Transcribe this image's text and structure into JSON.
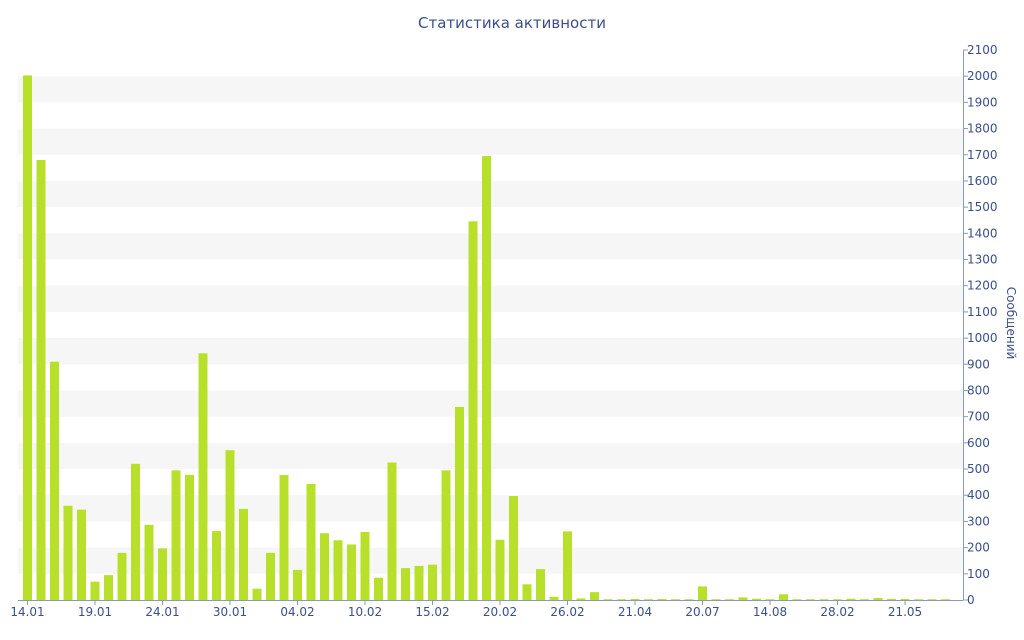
{
  "chart_data": {
    "type": "bar",
    "title": "Статистика активности",
    "xlabel": "",
    "ylabel": "Сообщений",
    "ylim": [
      0,
      2100
    ],
    "yticks": [
      0,
      100,
      200,
      300,
      400,
      500,
      600,
      700,
      800,
      900,
      1000,
      1100,
      1200,
      1300,
      1400,
      1500,
      1600,
      1700,
      1800,
      1900,
      2000,
      2100
    ],
    "y_axis_side": "right",
    "grid": "alternating horizontal bands",
    "bar_color": "#b8e02a",
    "band_color": "#f6f6f6",
    "text_color": "#3b4f8c",
    "xtick_labels": [
      {
        "index": 0,
        "label": "14.01"
      },
      {
        "index": 5,
        "label": "19.01"
      },
      {
        "index": 10,
        "label": "24.01"
      },
      {
        "index": 15,
        "label": "30.01"
      },
      {
        "index": 20,
        "label": "04.02"
      },
      {
        "index": 25,
        "label": "10.02"
      },
      {
        "index": 30,
        "label": "15.02"
      },
      {
        "index": 35,
        "label": "20.02"
      },
      {
        "index": 40,
        "label": "26.02"
      },
      {
        "index": 45,
        "label": "21.04"
      },
      {
        "index": 50,
        "label": "20.07"
      },
      {
        "index": 55,
        "label": "14.08"
      },
      {
        "index": 60,
        "label": "28.02"
      },
      {
        "index": 65,
        "label": "21.05"
      }
    ],
    "values": [
      2003,
      1680,
      910,
      360,
      345,
      70,
      95,
      180,
      520,
      287,
      197,
      495,
      478,
      942,
      263,
      572,
      348,
      43,
      180,
      477,
      115,
      443,
      255,
      228,
      212,
      260,
      85,
      525,
      122,
      130,
      135,
      495,
      737,
      1446,
      1695,
      230,
      397,
      60,
      118,
      12,
      262,
      6,
      30,
      3,
      3,
      4,
      3,
      4,
      3,
      3,
      52,
      3,
      3,
      10,
      5,
      3,
      22,
      3,
      3,
      3,
      3,
      5,
      3,
      8,
      4,
      4,
      3,
      3,
      3
    ]
  }
}
